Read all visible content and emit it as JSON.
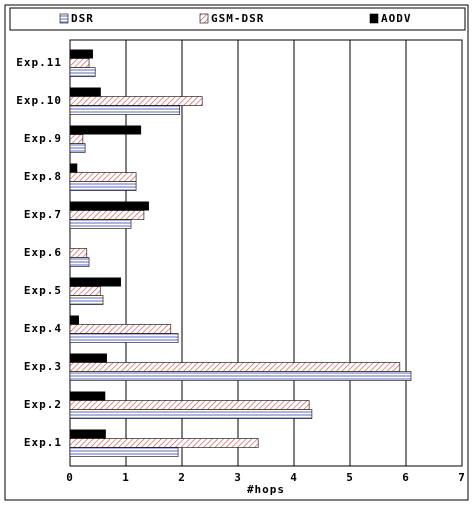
{
  "chart_data": {
    "type": "hbar",
    "x_label": "#hops",
    "categories": [
      "Exp.1",
      "Exp.2",
      "Exp.3",
      "Exp.4",
      "Exp.5",
      "Exp.6",
      "Exp.7",
      "Exp.8",
      "Exp.9",
      "Exp.10",
      "Exp.11"
    ],
    "series": [
      {
        "name": "DSR",
        "color": "#3344aa",
        "values": [
          1.93,
          4.32,
          6.09,
          1.93,
          0.59,
          0.34,
          1.09,
          1.18,
          0.27,
          1.96,
          0.45
        ]
      },
      {
        "name": "GSM-DSR",
        "color": "#cc4444",
        "values": [
          3.36,
          4.27,
          5.89,
          1.8,
          0.54,
          0.3,
          1.32,
          1.18,
          0.23,
          2.36,
          0.34
        ]
      },
      {
        "name": "AODV",
        "color": "#000000",
        "values": [
          0.64,
          0.63,
          0.66,
          0.16,
          0.91,
          0,
          1.41,
          0.13,
          1.27,
          0.55,
          0.41
        ]
      }
    ],
    "xlim": [
      0,
      7
    ],
    "xticks": [
      0,
      1,
      2,
      3,
      4,
      5,
      6,
      7
    ],
    "grid": true
  }
}
